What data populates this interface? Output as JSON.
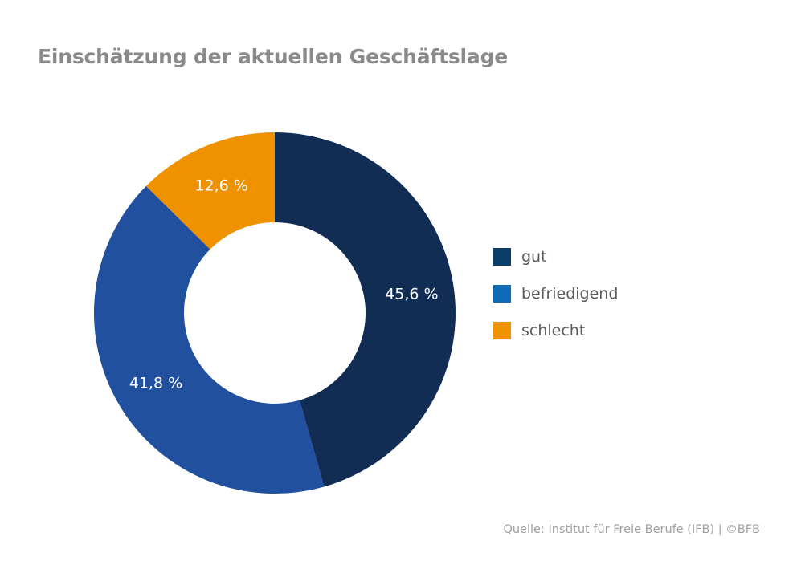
{
  "title": "Einschätzung der aktuellen Geschäftslage",
  "source": "Quelle: Institut für Freie Berufe (IFB) | ©BFB",
  "chart_data": {
    "type": "pie",
    "variant": "donut",
    "title": "Einschätzung der aktuellen Geschäftslage",
    "categories": [
      "gut",
      "befriedigend",
      "schlecht"
    ],
    "values": [
      45.6,
      41.8,
      12.6
    ],
    "labels": [
      "45,6 %",
      "41,8 %",
      "12,6 %"
    ],
    "colors": [
      "#112d54",
      "#21509f",
      "#f09100"
    ],
    "legend_colors": [
      "#0b3d6b",
      "#0d6bb8",
      "#f09100"
    ],
    "legend_position": "right",
    "start": "top",
    "direction": "clockwise"
  }
}
